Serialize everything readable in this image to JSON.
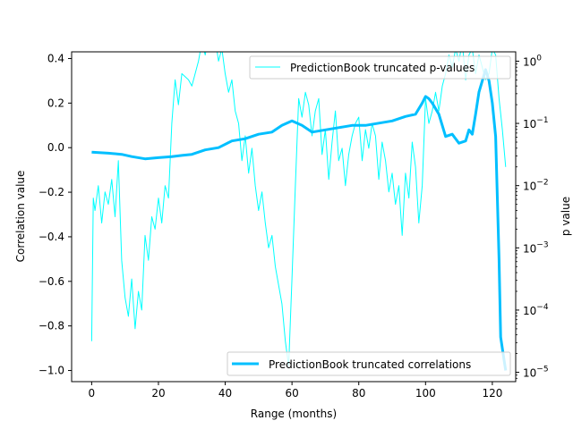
{
  "chart_data": {
    "type": "line",
    "xlabel": "Range (months)",
    "ylabel_left": "Correlation value",
    "ylabel_right": "p value",
    "xlim": [
      -6,
      127
    ],
    "ylim_left": [
      -1.05,
      0.43
    ],
    "ylim_right_log10": [
      -5.15,
      0.15
    ],
    "y_right_scale": "log",
    "x_ticks": [
      0,
      20,
      40,
      60,
      80,
      100,
      120
    ],
    "x_tick_labels": [
      "0",
      "20",
      "40",
      "60",
      "80",
      "100",
      "120"
    ],
    "y_left_ticks": [
      0.4,
      0.2,
      0.0,
      -0.2,
      -0.4,
      -0.6,
      -0.8,
      -1.0
    ],
    "y_left_tick_labels": [
      "0.4",
      "0.2",
      "0.0",
      "−0.2",
      "−0.4",
      "−0.6",
      "−0.8",
      "−1.0"
    ],
    "y_right_ticks_log10": [
      0,
      -1,
      -2,
      -3,
      -4,
      -5
    ],
    "y_right_tick_labels": [
      {
        "base": "10",
        "exp": "0"
      },
      {
        "base": "10",
        "exp": "−1"
      },
      {
        "base": "10",
        "exp": "−2"
      },
      {
        "base": "10",
        "exp": "−3"
      },
      {
        "base": "10",
        "exp": "−4"
      },
      {
        "base": "10",
        "exp": "−5"
      }
    ],
    "grid": false,
    "series": [
      {
        "name": "PredictionBook truncated correlations",
        "axis": "left",
        "color": "#00bfff",
        "legend_position": "lower right",
        "points": [
          [
            0,
            -0.02
          ],
          [
            5,
            -0.025
          ],
          [
            9,
            -0.03
          ],
          [
            12,
            -0.04
          ],
          [
            16,
            -0.05
          ],
          [
            20,
            -0.045
          ],
          [
            24,
            -0.04
          ],
          [
            27,
            -0.035
          ],
          [
            30,
            -0.03
          ],
          [
            34,
            -0.01
          ],
          [
            38,
            0.0
          ],
          [
            42,
            0.03
          ],
          [
            46,
            0.04
          ],
          [
            50,
            0.06
          ],
          [
            54,
            0.07
          ],
          [
            57,
            0.1
          ],
          [
            60,
            0.12
          ],
          [
            63,
            0.1
          ],
          [
            66,
            0.07
          ],
          [
            70,
            0.08
          ],
          [
            74,
            0.09
          ],
          [
            78,
            0.1
          ],
          [
            82,
            0.1
          ],
          [
            86,
            0.11
          ],
          [
            90,
            0.12
          ],
          [
            94,
            0.14
          ],
          [
            97,
            0.15
          ],
          [
            99,
            0.2
          ],
          [
            100,
            0.23
          ],
          [
            101,
            0.22
          ],
          [
            102,
            0.2
          ],
          [
            104,
            0.15
          ],
          [
            106,
            0.05
          ],
          [
            108,
            0.06
          ],
          [
            110,
            0.02
          ],
          [
            112,
            0.03
          ],
          [
            113,
            0.08
          ],
          [
            114,
            0.06
          ],
          [
            115,
            0.15
          ],
          [
            116,
            0.25
          ],
          [
            117,
            0.3
          ],
          [
            118,
            0.35
          ],
          [
            119,
            0.3
          ],
          [
            120,
            0.2
          ],
          [
            121,
            0.05
          ],
          [
            122,
            -0.5
          ],
          [
            122.5,
            -0.85
          ],
          [
            123.5,
            -0.95
          ],
          [
            124,
            -1.0
          ]
        ]
      },
      {
        "name": "PredictionBook truncated p-values",
        "axis": "right",
        "color": "#00ffff",
        "legend_position": "upper right",
        "points": [
          [
            0,
            -4.5
          ],
          [
            0.5,
            -2.2
          ],
          [
            1,
            -2.4
          ],
          [
            2,
            -2.0
          ],
          [
            3,
            -2.6
          ],
          [
            4,
            -2.1
          ],
          [
            5,
            -2.3
          ],
          [
            6,
            -1.9
          ],
          [
            7,
            -2.5
          ],
          [
            8,
            -1.6
          ],
          [
            9,
            -3.2
          ],
          [
            10,
            -3.8
          ],
          [
            11,
            -4.1
          ],
          [
            12,
            -3.5
          ],
          [
            13,
            -4.3
          ],
          [
            14,
            -3.7
          ],
          [
            15,
            -4.0
          ],
          [
            16,
            -2.8
          ],
          [
            17,
            -3.2
          ],
          [
            18,
            -2.5
          ],
          [
            19,
            -2.7
          ],
          [
            20,
            -2.2
          ],
          [
            21,
            -2.6
          ],
          [
            22,
            -2.0
          ],
          [
            23,
            -2.2
          ],
          [
            24,
            -1.0
          ],
          [
            25,
            -0.3
          ],
          [
            26,
            -0.7
          ],
          [
            27,
            -0.2
          ],
          [
            29,
            -0.3
          ],
          [
            30,
            -0.4
          ],
          [
            32,
            0.0
          ],
          [
            33,
            0.3
          ],
          [
            34,
            0.1
          ],
          [
            35,
            0.4
          ],
          [
            36,
            0.3
          ],
          [
            37,
            0.35
          ],
          [
            38,
            0.0
          ],
          [
            39,
            0.2
          ],
          [
            40,
            -0.2
          ],
          [
            41,
            -0.5
          ],
          [
            42,
            -0.3
          ],
          [
            43,
            -0.8
          ],
          [
            44,
            -1.0
          ],
          [
            45,
            -1.6
          ],
          [
            46,
            -1.2
          ],
          [
            47,
            -1.8
          ],
          [
            48,
            -1.4
          ],
          [
            49,
            -2.0
          ],
          [
            50,
            -2.4
          ],
          [
            51,
            -2.1
          ],
          [
            52,
            -2.6
          ],
          [
            53,
            -3.0
          ],
          [
            54,
            -2.8
          ],
          [
            55,
            -3.3
          ],
          [
            56,
            -3.6
          ],
          [
            57,
            -3.9
          ],
          [
            58,
            -4.5
          ],
          [
            59,
            -4.9
          ],
          [
            60,
            -3.5
          ],
          [
            61,
            -2.0
          ],
          [
            62,
            -0.6
          ],
          [
            63,
            -0.9
          ],
          [
            64,
            -0.5
          ],
          [
            65,
            -0.7
          ],
          [
            66,
            -1.2
          ],
          [
            67,
            -0.8
          ],
          [
            68,
            -0.6
          ],
          [
            69,
            -1.5
          ],
          [
            70,
            -1.1
          ],
          [
            71,
            -1.9
          ],
          [
            72,
            -1.3
          ],
          [
            73,
            -0.8
          ],
          [
            74,
            -1.6
          ],
          [
            75,
            -1.4
          ],
          [
            76,
            -2.0
          ],
          [
            77,
            -1.5
          ],
          [
            78,
            -1.2
          ],
          [
            79,
            -1.0
          ],
          [
            80,
            -0.9
          ],
          [
            81,
            -1.6
          ],
          [
            82,
            -1.1
          ],
          [
            83,
            -1.4
          ],
          [
            84,
            -1.0
          ],
          [
            85,
            -1.2
          ],
          [
            86,
            -1.9
          ],
          [
            87,
            -1.3
          ],
          [
            88,
            -1.6
          ],
          [
            89,
            -2.1
          ],
          [
            90,
            -1.8
          ],
          [
            91,
            -2.3
          ],
          [
            92,
            -2.0
          ],
          [
            93,
            -2.8
          ],
          [
            94,
            -1.8
          ],
          [
            95,
            -2.2
          ],
          [
            96,
            -1.3
          ],
          [
            97,
            -1.7
          ],
          [
            98,
            -2.6
          ],
          [
            99,
            -2.0
          ],
          [
            100,
            -0.6
          ],
          [
            101,
            -1.0
          ],
          [
            102,
            -0.8
          ],
          [
            103,
            -0.5
          ],
          [
            104,
            -0.8
          ],
          [
            105,
            -0.4
          ],
          [
            106,
            -0.2
          ],
          [
            107,
            0.1
          ],
          [
            108,
            -0.1
          ],
          [
            109,
            0.2
          ],
          [
            110,
            0.0
          ],
          [
            111,
            0.3
          ],
          [
            112,
            -0.3
          ],
          [
            113,
            0.1
          ],
          [
            114,
            0.2
          ],
          [
            115,
            -0.2
          ],
          [
            116,
            0.1
          ],
          [
            117,
            -0.1
          ],
          [
            118,
            -0.3
          ],
          [
            119,
            -0.2
          ],
          [
            120,
            0.2
          ],
          [
            121,
            0.1
          ],
          [
            122,
            -0.6
          ],
          [
            123,
            -1.1
          ],
          [
            124,
            -1.7
          ]
        ]
      }
    ]
  }
}
